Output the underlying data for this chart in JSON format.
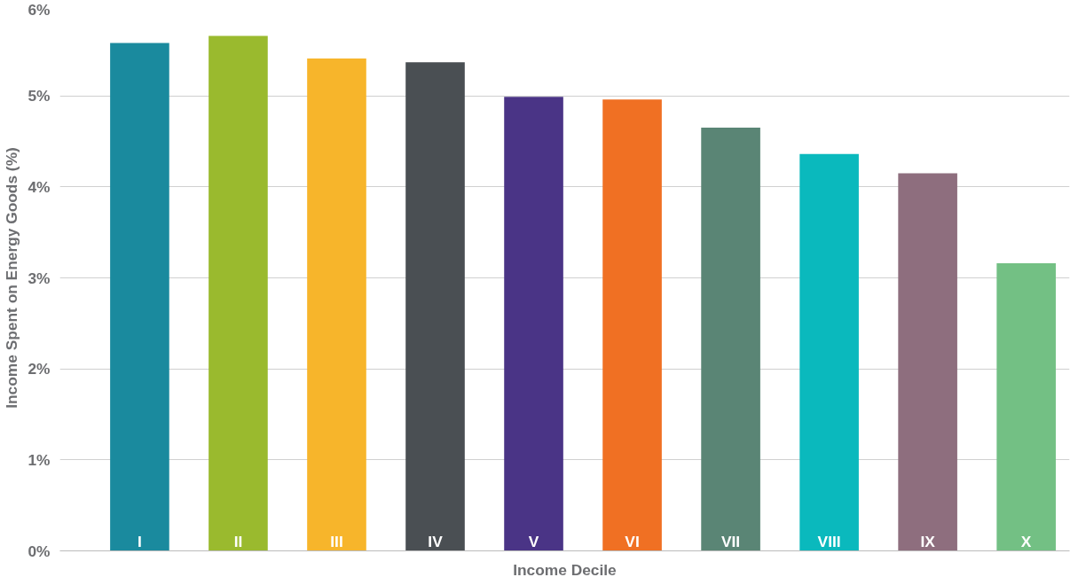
{
  "chart_data": {
    "type": "bar",
    "xlabel": "Income Decile",
    "ylabel": "Income Spent on Energy Goods (%)",
    "categories": [
      "I",
      "II",
      "III",
      "IV",
      "V",
      "VI",
      "VII",
      "VIII",
      "IX",
      "X"
    ],
    "values": [
      5.58,
      5.66,
      5.41,
      5.37,
      4.99,
      4.96,
      4.65,
      4.36,
      4.15,
      3.16
    ],
    "colors": [
      "#1a8a9e",
      "#9aba2e",
      "#f7b52b",
      "#4a4f53",
      "#4a3486",
      "#f07023",
      "#5a8575",
      "#0ab9bd",
      "#8e6e7e",
      "#73c084"
    ],
    "ylim": [
      0,
      6
    ],
    "yticks": [
      {
        "value": 0,
        "label": "0%"
      },
      {
        "value": 1,
        "label": "1%"
      },
      {
        "value": 2,
        "label": "2%"
      },
      {
        "value": 3,
        "label": "3%"
      },
      {
        "value": 4,
        "label": "4%"
      },
      {
        "value": 5,
        "label": "5%"
      },
      {
        "value": 6,
        "label": "6%"
      }
    ],
    "grid": "y",
    "tick_labels": "y"
  }
}
